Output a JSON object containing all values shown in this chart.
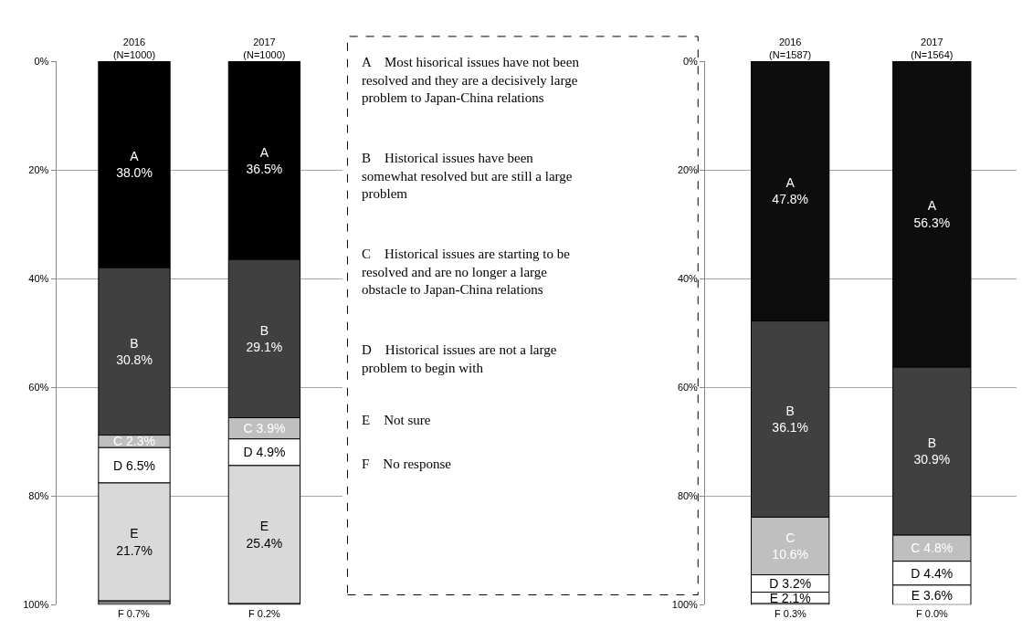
{
  "chart_data": [
    {
      "type": "bar",
      "stacked": true,
      "categories": [
        "2016\n(N=1000)",
        "2017\n(N=1000)"
      ],
      "ylim": [
        100,
        0
      ],
      "yticks": [
        {
          "value": 0,
          "label": "0%"
        },
        {
          "value": 20,
          "label": "20%"
        },
        {
          "value": 40,
          "label": "40%"
        },
        {
          "value": 60,
          "label": "60%"
        },
        {
          "value": 80,
          "label": "80%"
        },
        {
          "value": 100,
          "label": "100%"
        }
      ],
      "grid": "y",
      "series": [
        {
          "color": "#000000",
          "values": [
            38.0,
            36.5
          ],
          "value_labels": [
            "A\n38.0%",
            "A\n36.5%"
          ]
        },
        {
          "color": "#404040",
          "values": [
            30.8,
            29.1
          ],
          "value_labels": [
            "B\n30.8%",
            "B\n29.1%"
          ]
        },
        {
          "color": "#bfbfbf",
          "values": [
            2.3,
            3.9
          ],
          "value_labels": [
            "C 2.3%",
            "C 3.9%"
          ]
        },
        {
          "color": "#ffffff",
          "values": [
            6.5,
            4.9
          ],
          "value_labels": [
            "D 6.5%",
            "D 4.9%"
          ]
        },
        {
          "color": "#d9d9d9",
          "values": [
            21.7,
            25.4
          ],
          "value_labels": [
            "E\n21.7%",
            "E\n25.4%"
          ]
        },
        {
          "color": "#7f7f7f",
          "values": [
            0.7,
            0.2
          ],
          "value_labels": [
            "F 0.7%",
            "F 0.2%"
          ]
        }
      ]
    },
    {
      "type": "other",
      "annotations": [
        "A    Most hisorical issues have not been\nresolved and they are a decisively large\nproblem to Japan-China relations",
        "B    Historical issues have been\nsomewhat resolved but are still a large\nproblem",
        "C    Historical issues are starting to be\nresolved and are no longer a large\nobstacle to Japan-China relations",
        "D    Historical issues are not a large\nproblem to begin with",
        "E    Not sure",
        "F    No response"
      ]
    },
    {
      "type": "bar",
      "stacked": true,
      "categories": [
        "2016\n(N=1587)",
        "2017\n(N=1564)"
      ],
      "ylim": [
        100,
        0
      ],
      "yticks": [
        {
          "value": 0,
          "label": "0%"
        },
        {
          "value": 20,
          "label": "20%"
        },
        {
          "value": 40,
          "label": "40%"
        },
        {
          "value": 60,
          "label": "60%"
        },
        {
          "value": 80,
          "label": "80%"
        },
        {
          "value": 100,
          "label": "100%"
        }
      ],
      "grid": "y",
      "series": [
        {
          "color": "#0d0d0d",
          "values": [
            47.8,
            56.3
          ],
          "value_labels": [
            "A\n47.8%",
            "A\n56.3%"
          ]
        },
        {
          "color": "#404040",
          "values": [
            36.1,
            30.9
          ],
          "value_labels": [
            "B\n36.1%",
            "B\n30.9%"
          ]
        },
        {
          "color": "#bfbfbf",
          "values": [
            10.6,
            4.8
          ],
          "value_labels": [
            "C\n10.6%",
            "C 4.8%"
          ]
        },
        {
          "color": "#ffffff",
          "values": [
            3.2,
            4.4
          ],
          "value_labels": [
            "D 3.2%",
            "D 4.4%"
          ]
        },
        {
          "color": "#ffffff",
          "values": [
            2.1,
            3.6
          ],
          "value_labels": [
            "E 2.1%",
            "E 3.6%"
          ]
        },
        {
          "color": "#ffffff",
          "values": [
            0.3,
            0.0
          ],
          "value_labels": [
            "F 0.3%",
            "F 0.0%"
          ]
        }
      ]
    }
  ]
}
